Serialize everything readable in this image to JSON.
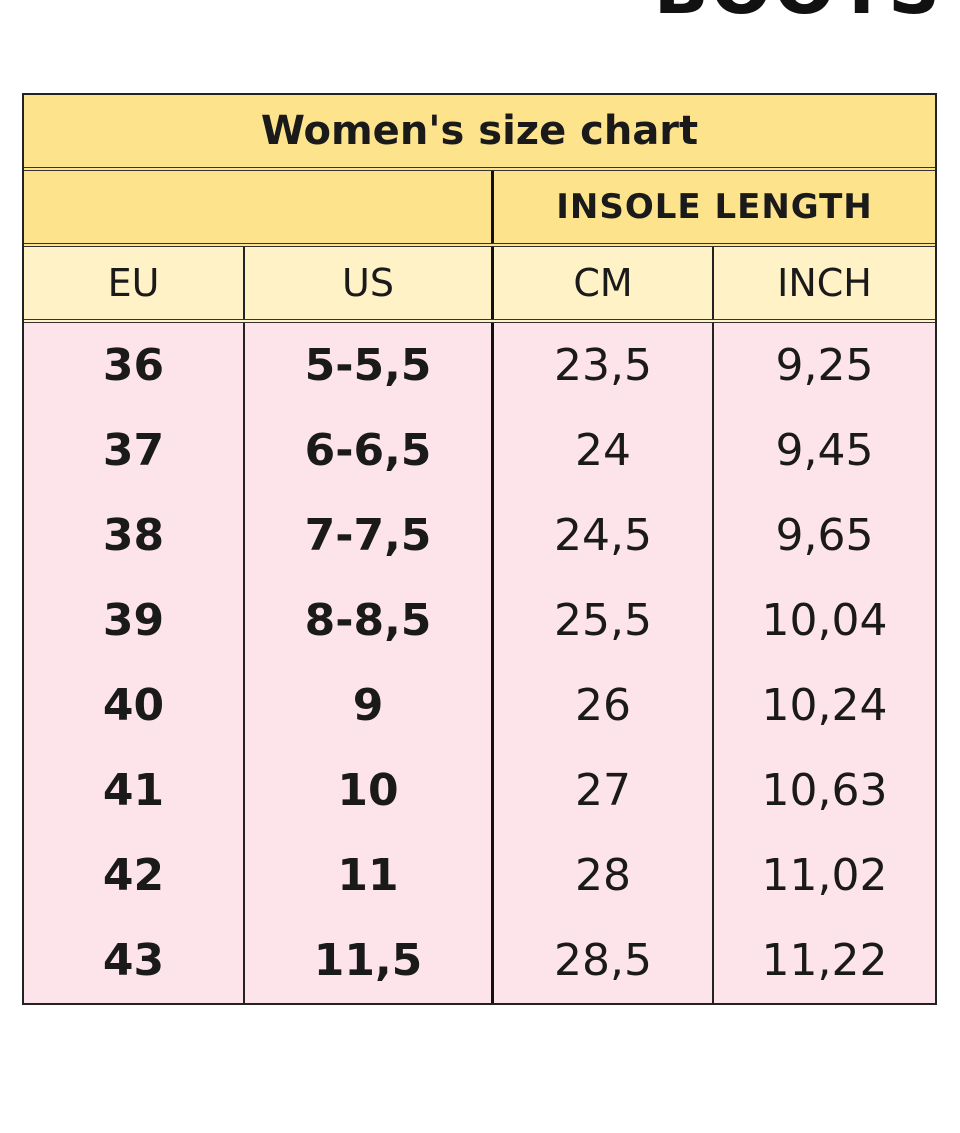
{
  "header": {
    "brand": "BOOTS"
  },
  "table": {
    "title": "Women's size chart",
    "group_header": "INSOLE LENGTH",
    "columns": [
      "EU",
      "US",
      "CM",
      "INCH"
    ],
    "rows": [
      [
        "36",
        "5-5,5",
        "23,5",
        "9,25"
      ],
      [
        "37",
        "6-6,5",
        "24",
        "9,45"
      ],
      [
        "38",
        "7-7,5",
        "24,5",
        "9,65"
      ],
      [
        "39",
        "8-8,5",
        "25,5",
        "10,04"
      ],
      [
        "40",
        "9",
        "26",
        "10,24"
      ],
      [
        "41",
        "10",
        "27",
        "10,63"
      ],
      [
        "42",
        "11",
        "28",
        "11,02"
      ],
      [
        "43",
        "11,5",
        "28,5",
        "11,22"
      ]
    ]
  }
}
